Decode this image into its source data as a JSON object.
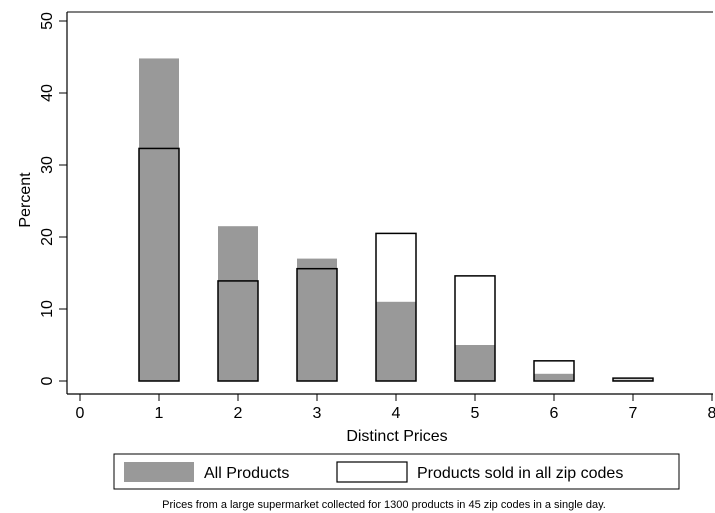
{
  "chart_data": {
    "type": "bar",
    "xlabel": "Distinct Prices",
    "ylabel": "Percent",
    "xlim": [
      0,
      8
    ],
    "ylim": [
      0,
      50
    ],
    "xticks": [
      0,
      1,
      2,
      3,
      4,
      5,
      6,
      7,
      8
    ],
    "yticks": [
      0,
      10,
      20,
      30,
      40,
      50
    ],
    "grid": false,
    "legend_position": "bottom",
    "series": [
      {
        "name": "All Products",
        "style": "filled",
        "color": "#999999",
        "x": [
          1,
          2,
          3,
          4,
          5,
          6,
          7
        ],
        "values": [
          44.8,
          21.5,
          17.0,
          11.0,
          5.0,
          1.0,
          0.2
        ]
      },
      {
        "name": "Products sold in all zip codes",
        "style": "outline",
        "color": "#000000",
        "x": [
          1,
          2,
          3,
          4,
          5,
          6,
          7
        ],
        "values": [
          32.3,
          13.9,
          15.6,
          20.5,
          14.6,
          2.8,
          0.4
        ]
      }
    ],
    "note": "Prices from a large supermarket collected for 1300 products in 45 zip codes in a single day."
  }
}
